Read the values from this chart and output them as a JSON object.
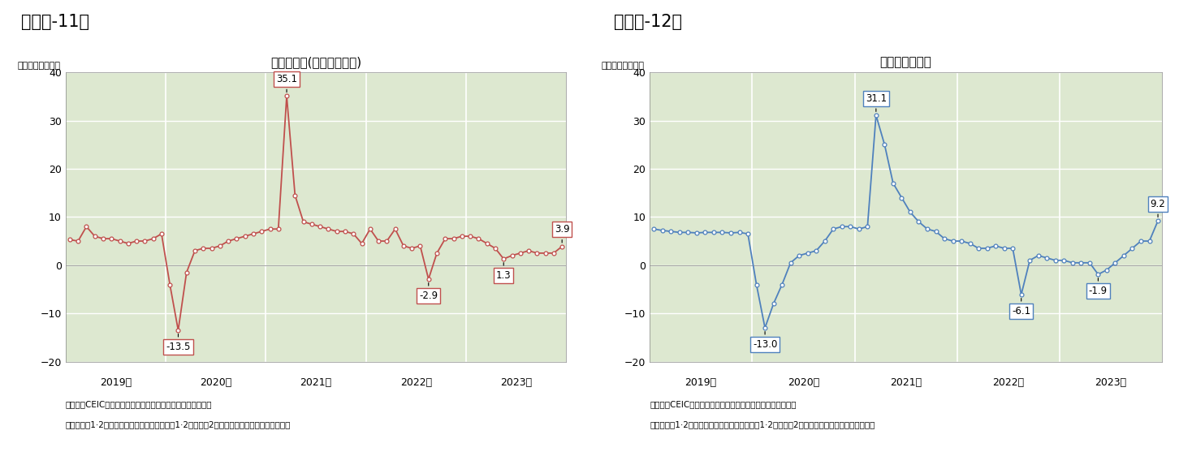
{
  "chart1": {
    "title": "鉱工業生産(実質付加価値)",
    "ylabel": "（前年同月比％）",
    "panel_title": "（図表-11）",
    "color": "#c0504d",
    "bg_color": "#dde8d0",
    "ylim": [
      -20,
      40
    ],
    "yticks": [
      -20,
      -10,
      0,
      10,
      20,
      30,
      40
    ],
    "annotations": [
      {
        "label": "35.1",
        "idx": 26,
        "val": 35.1,
        "above": true
      },
      {
        "label": "-13.5",
        "idx": 13,
        "val": -13.5,
        "above": false
      },
      {
        "label": "-2.9",
        "idx": 43,
        "val": -2.9,
        "above": false
      },
      {
        "label": "1.3",
        "idx": 52,
        "val": 1.3,
        "above": false
      },
      {
        "label": "3.9",
        "idx": 59,
        "val": 3.9,
        "above": true
      }
    ],
    "values": [
      5.3,
      5.0,
      8.0,
      6.0,
      5.5,
      5.5,
      5.0,
      4.5,
      5.0,
      5.0,
      5.5,
      6.5,
      -4.0,
      -13.5,
      -1.5,
      3.0,
      3.5,
      3.5,
      4.0,
      5.0,
      5.5,
      6.0,
      6.5,
      7.0,
      7.5,
      7.5,
      35.1,
      14.5,
      9.0,
      8.5,
      8.0,
      7.5,
      7.0,
      7.0,
      6.5,
      4.5,
      7.5,
      5.0,
      5.0,
      7.5,
      4.0,
      3.5,
      4.0,
      -2.9,
      2.5,
      5.5,
      5.5,
      6.0,
      6.0,
      5.5,
      4.5,
      3.5,
      1.3,
      2.0,
      2.5,
      3.0,
      2.5,
      2.5,
      2.5,
      3.9
    ]
  },
  "chart2": {
    "title": "サービス業生産",
    "ylabel": "（前年同月比％）",
    "panel_title": "（図表-12）",
    "color": "#4f81bd",
    "bg_color": "#dde8d0",
    "ylim": [
      -20,
      40
    ],
    "yticks": [
      -20,
      -10,
      0,
      10,
      20,
      30,
      40
    ],
    "annotations": [
      {
        "label": "31.1",
        "idx": 26,
        "val": 31.1,
        "above": true
      },
      {
        "label": "-13.0",
        "idx": 13,
        "val": -13.0,
        "above": false
      },
      {
        "label": "-6.1",
        "idx": 43,
        "val": -6.1,
        "above": false
      },
      {
        "label": "-1.9",
        "idx": 52,
        "val": -1.9,
        "above": false
      },
      {
        "label": "9.2",
        "idx": 59,
        "val": 9.2,
        "above": true
      }
    ],
    "values": [
      7.5,
      7.2,
      7.0,
      6.8,
      6.8,
      6.7,
      6.8,
      6.8,
      6.8,
      6.7,
      6.8,
      6.5,
      -4.0,
      -13.0,
      -8.0,
      -4.0,
      0.5,
      2.0,
      2.5,
      3.0,
      5.0,
      7.5,
      8.0,
      8.0,
      7.5,
      8.0,
      31.1,
      25.0,
      17.0,
      14.0,
      11.0,
      9.0,
      7.5,
      7.0,
      5.5,
      5.0,
      5.0,
      4.5,
      3.5,
      3.5,
      4.0,
      3.5,
      3.5,
      -6.1,
      1.0,
      2.0,
      1.5,
      1.0,
      1.0,
      0.5,
      0.5,
      0.5,
      -1.9,
      -1.0,
      0.5,
      2.0,
      3.5,
      5.0,
      5.0,
      9.2
    ]
  },
  "x_labels": [
    "2019年",
    "2020年",
    "2021年",
    "2022年",
    "2023年"
  ],
  "note1": "（資料）CEIC（出所は中国国家統計局）のデータを元に作成",
  "note2": "（注）例年1·2月は春節の影響でぶれるため、1·2月は共に2月時点累計（前年同期比）を表示",
  "total_points": 60
}
